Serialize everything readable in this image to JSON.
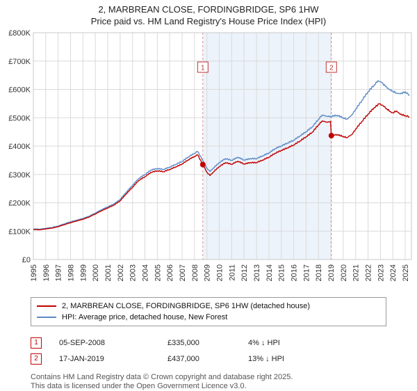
{
  "chart_data": {
    "type": "line",
    "title": "2, MARBREAN CLOSE, FORDINGBRIDGE, SP6 1HW",
    "subtitle": "Price paid vs. HM Land Registry's House Price Index (HPI)",
    "xlim": [
      1995,
      2025.5
    ],
    "ylim": [
      0,
      800000
    ],
    "xticks": [
      1995,
      1996,
      1997,
      1998,
      1999,
      2000,
      2001,
      2002,
      2003,
      2004,
      2005,
      2006,
      2007,
      2008,
      2009,
      2010,
      2011,
      2012,
      2013,
      2014,
      2015,
      2016,
      2017,
      2018,
      2019,
      2020,
      2021,
      2022,
      2023,
      2024,
      2025
    ],
    "yticks": [
      0,
      100000,
      200000,
      300000,
      400000,
      500000,
      600000,
      700000,
      800000
    ],
    "ytick_labels": [
      "£0",
      "£100K",
      "£200K",
      "£300K",
      "£400K",
      "£500K",
      "£600K",
      "£700K",
      "£800K"
    ],
    "grid": true,
    "legend_position": "bottom",
    "colors": {
      "property": "#c00000",
      "hpi": "#5a8ac6",
      "sale_marker": "#c00000",
      "dashed_line": "#e08a8a",
      "shade": "#edf3fb",
      "grid": "#dadada",
      "border": "#c8c8c8"
    },
    "shaded_region": {
      "from": 2008.67,
      "to": 2019.04
    },
    "series": [
      {
        "name": "2, MARBREAN CLOSE, FORDINGBRIDGE, SP6 1HW (detached house)",
        "color": "#c00000",
        "points": [
          [
            1995,
            106000
          ],
          [
            1995.5,
            105000
          ],
          [
            1996,
            108000
          ],
          [
            1996.5,
            111000
          ],
          [
            1997,
            116000
          ],
          [
            1997.5,
            123000
          ],
          [
            1998,
            130000
          ],
          [
            1998.5,
            136000
          ],
          [
            1999,
            142000
          ],
          [
            1999.5,
            150000
          ],
          [
            2000,
            161000
          ],
          [
            2000.5,
            172000
          ],
          [
            2001,
            182000
          ],
          [
            2001.5,
            192000
          ],
          [
            2002,
            207000
          ],
          [
            2002.5,
            232000
          ],
          [
            2003,
            255000
          ],
          [
            2003.5,
            279000
          ],
          [
            2004,
            292000
          ],
          [
            2004.5,
            308000
          ],
          [
            2005,
            313000
          ],
          [
            2005.5,
            310000
          ],
          [
            2006,
            318000
          ],
          [
            2006.5,
            327000
          ],
          [
            2007,
            337000
          ],
          [
            2007.5,
            352000
          ],
          [
            2008,
            364000
          ],
          [
            2008.25,
            369000
          ],
          [
            2008.67,
            335000
          ],
          [
            2009,
            308000
          ],
          [
            2009.25,
            296000
          ],
          [
            2009.5,
            308000
          ],
          [
            2010,
            328000
          ],
          [
            2010.5,
            342000
          ],
          [
            2011,
            336000
          ],
          [
            2011.5,
            347000
          ],
          [
            2012,
            337000
          ],
          [
            2012.5,
            342000
          ],
          [
            2013,
            342000
          ],
          [
            2013.5,
            351000
          ],
          [
            2014,
            361000
          ],
          [
            2014.5,
            375000
          ],
          [
            2015,
            385000
          ],
          [
            2015.5,
            394000
          ],
          [
            2016,
            404000
          ],
          [
            2016.5,
            418000
          ],
          [
            2017,
            433000
          ],
          [
            2017.5,
            449000
          ],
          [
            2018,
            475000
          ],
          [
            2018.3,
            489000
          ],
          [
            2018.7,
            484000
          ],
          [
            2018.97,
            487000
          ],
          [
            2019.04,
            437000
          ],
          [
            2019.5,
            441000
          ],
          [
            2020,
            434000
          ],
          [
            2020.3,
            430000
          ],
          [
            2020.7,
            441000
          ],
          [
            2021,
            460000
          ],
          [
            2021.5,
            487000
          ],
          [
            2022,
            513000
          ],
          [
            2022.5,
            536000
          ],
          [
            2022.9,
            549000
          ],
          [
            2023.2,
            543000
          ],
          [
            2023.5,
            532000
          ],
          [
            2023.8,
            522000
          ],
          [
            2024,
            518000
          ],
          [
            2024.3,
            524000
          ],
          [
            2024.6,
            512000
          ],
          [
            2025,
            508000
          ],
          [
            2025.35,
            503000
          ]
        ]
      },
      {
        "name": "HPI: Average price, detached house, New Forest",
        "color": "#5a8ac6",
        "points": [
          [
            1995,
            108000
          ],
          [
            1995.5,
            107000
          ],
          [
            1996,
            110000
          ],
          [
            1996.5,
            113000
          ],
          [
            1997,
            118000
          ],
          [
            1997.5,
            126000
          ],
          [
            1998,
            133000
          ],
          [
            1998.5,
            139000
          ],
          [
            1999,
            145000
          ],
          [
            1999.5,
            153000
          ],
          [
            2000,
            164000
          ],
          [
            2000.5,
            176000
          ],
          [
            2001,
            186000
          ],
          [
            2001.5,
            196000
          ],
          [
            2002,
            212000
          ],
          [
            2002.5,
            238000
          ],
          [
            2003,
            262000
          ],
          [
            2003.5,
            286000
          ],
          [
            2004,
            300000
          ],
          [
            2004.5,
            316000
          ],
          [
            2005,
            321000
          ],
          [
            2005.5,
            318000
          ],
          [
            2006,
            326000
          ],
          [
            2006.5,
            336000
          ],
          [
            2007,
            346000
          ],
          [
            2007.5,
            362000
          ],
          [
            2008,
            375000
          ],
          [
            2008.25,
            381000
          ],
          [
            2008.67,
            350000
          ],
          [
            2009,
            322000
          ],
          [
            2009.25,
            310000
          ],
          [
            2009.5,
            322000
          ],
          [
            2010,
            342000
          ],
          [
            2010.5,
            356000
          ],
          [
            2011,
            350000
          ],
          [
            2011.5,
            361000
          ],
          [
            2012,
            351000
          ],
          [
            2012.5,
            356000
          ],
          [
            2013,
            356000
          ],
          [
            2013.5,
            366000
          ],
          [
            2014,
            376000
          ],
          [
            2014.5,
            391000
          ],
          [
            2015,
            401000
          ],
          [
            2015.5,
            411000
          ],
          [
            2016,
            421000
          ],
          [
            2016.5,
            436000
          ],
          [
            2017,
            451000
          ],
          [
            2017.5,
            468000
          ],
          [
            2018,
            495000
          ],
          [
            2018.3,
            510000
          ],
          [
            2018.7,
            505000
          ],
          [
            2019,
            505000
          ],
          [
            2019.5,
            509000
          ],
          [
            2020,
            500000
          ],
          [
            2020.3,
            495000
          ],
          [
            2020.7,
            510000
          ],
          [
            2021,
            530000
          ],
          [
            2021.5,
            561000
          ],
          [
            2022,
            592000
          ],
          [
            2022.5,
            616000
          ],
          [
            2022.8,
            631000
          ],
          [
            2023.1,
            624000
          ],
          [
            2023.4,
            611000
          ],
          [
            2023.7,
            600000
          ],
          [
            2024,
            594000
          ],
          [
            2024.3,
            587000
          ],
          [
            2024.6,
            584000
          ],
          [
            2025,
            592000
          ],
          [
            2025.35,
            579000
          ]
        ]
      }
    ],
    "sales": [
      {
        "num": "1",
        "date": "05-SEP-2008",
        "year": 2008.67,
        "price": 335000,
        "price_label": "£335,000",
        "hpi_label": "4% ↓ HPI"
      },
      {
        "num": "2",
        "date": "17-JAN-2019",
        "year": 2019.04,
        "price": 437000,
        "price_label": "£437,000",
        "hpi_label": "13% ↓ HPI"
      }
    ]
  },
  "footer": {
    "line1": "Contains HM Land Registry data © Crown copyright and database right 2025.",
    "line2": "This data is licensed under the Open Government Licence v3.0."
  }
}
